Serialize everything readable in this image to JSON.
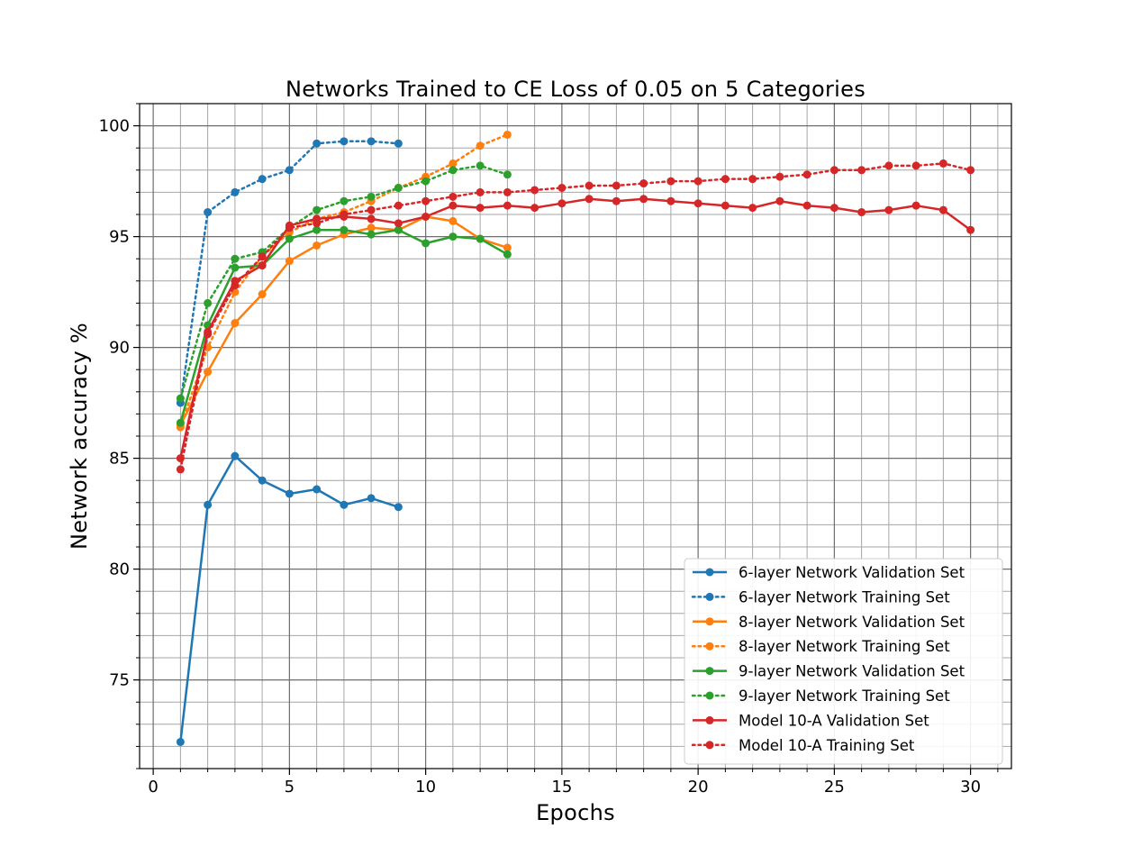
{
  "chart_data": {
    "type": "line",
    "title": "Networks Trained to CE Loss of 0.05 on 5 Categories",
    "xlabel": "Epochs",
    "ylabel": "Network accuracy %",
    "xlim": [
      -0.5,
      31.5
    ],
    "ylim": [
      71,
      101
    ],
    "x_ticks": [
      0,
      5,
      10,
      15,
      20,
      25,
      30
    ],
    "y_ticks": [
      75,
      80,
      85,
      90,
      95,
      100
    ],
    "grid": true,
    "legend_position": "lower-right",
    "series": [
      {
        "name": "6-layer Network Validation Set",
        "color": "#1f77b4",
        "style": "solid",
        "x": [
          1,
          2,
          3,
          4,
          5,
          6,
          7,
          8,
          9
        ],
        "y": [
          72.2,
          82.9,
          85.1,
          84.0,
          83.4,
          83.6,
          82.9,
          83.2,
          82.8
        ]
      },
      {
        "name": "6-layer Network Training Set",
        "color": "#1f77b4",
        "style": "dotted",
        "x": [
          1,
          2,
          3,
          4,
          5,
          6,
          7,
          8,
          9
        ],
        "y": [
          87.5,
          96.1,
          97.0,
          97.6,
          98.0,
          99.2,
          99.3,
          99.3,
          99.2
        ]
      },
      {
        "name": "8-layer Network Validation Set",
        "color": "#ff7f0e",
        "style": "solid",
        "x": [
          1,
          2,
          3,
          4,
          5,
          6,
          7,
          8,
          9,
          10,
          11,
          12,
          13
        ],
        "y": [
          86.5,
          88.9,
          91.1,
          92.4,
          93.9,
          94.6,
          95.1,
          95.4,
          95.3,
          95.9,
          95.7,
          94.9,
          94.5
        ]
      },
      {
        "name": "8-layer Network Training Set",
        "color": "#ff7f0e",
        "style": "dotted",
        "x": [
          1,
          2,
          3,
          4,
          5,
          6,
          7,
          8,
          9,
          10,
          11,
          12,
          13
        ],
        "y": [
          86.4,
          90.0,
          92.5,
          94.1,
          95.2,
          95.8,
          96.1,
          96.6,
          97.2,
          97.7,
          98.3,
          99.1,
          99.6
        ]
      },
      {
        "name": "9-layer Network Validation Set",
        "color": "#2ca02c",
        "style": "solid",
        "x": [
          1,
          2,
          3,
          4,
          5,
          6,
          7,
          8,
          9,
          10,
          11,
          12,
          13
        ],
        "y": [
          86.6,
          91.0,
          93.6,
          93.7,
          94.9,
          95.3,
          95.3,
          95.1,
          95.3,
          94.7,
          95.0,
          94.9,
          94.2
        ]
      },
      {
        "name": "9-layer Network Training Set",
        "color": "#2ca02c",
        "style": "dotted",
        "x": [
          1,
          2,
          3,
          4,
          5,
          6,
          7,
          8,
          9,
          10,
          11,
          12,
          13
        ],
        "y": [
          87.7,
          92.0,
          94.0,
          94.3,
          95.4,
          96.2,
          96.6,
          96.8,
          97.2,
          97.5,
          98.0,
          98.2,
          97.8
        ]
      },
      {
        "name": "Model 10-A Validation Set",
        "color": "#d62728",
        "style": "solid",
        "x": [
          1,
          2,
          3,
          4,
          5,
          6,
          7,
          8,
          9,
          10,
          11,
          12,
          13,
          14,
          15,
          16,
          17,
          18,
          19,
          20,
          21,
          22,
          23,
          24,
          25,
          26,
          27,
          28,
          29,
          30
        ],
        "y": [
          85.0,
          90.7,
          93.0,
          93.7,
          95.5,
          95.8,
          95.9,
          95.8,
          95.6,
          95.9,
          96.4,
          96.3,
          96.4,
          96.3,
          96.5,
          96.7,
          96.6,
          96.7,
          96.6,
          96.5,
          96.4,
          96.3,
          96.6,
          96.4,
          96.3,
          96.1,
          96.2,
          96.4,
          96.2,
          95.3
        ]
      },
      {
        "name": "Model 10-A Training Set",
        "color": "#d62728",
        "style": "dotted",
        "x": [
          1,
          2,
          3,
          4,
          5,
          6,
          7,
          8,
          9,
          10,
          11,
          12,
          13,
          14,
          15,
          16,
          17,
          18,
          19,
          20,
          21,
          22,
          23,
          24,
          25,
          26,
          27,
          28,
          29,
          30
        ],
        "y": [
          84.5,
          90.6,
          92.8,
          94.1,
          95.4,
          95.6,
          96.0,
          96.2,
          96.4,
          96.6,
          96.8,
          97.0,
          97.0,
          97.1,
          97.2,
          97.3,
          97.3,
          97.4,
          97.5,
          97.5,
          97.6,
          97.6,
          97.7,
          97.8,
          98.0,
          98.0,
          98.2,
          98.2,
          98.3,
          98.0
        ]
      }
    ]
  }
}
